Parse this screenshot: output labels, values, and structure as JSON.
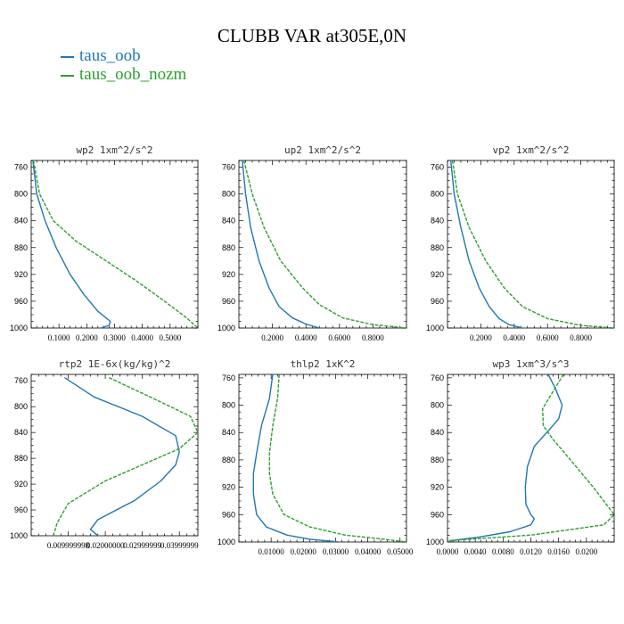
{
  "title": "CLUBB VAR at305E,0N",
  "legend": [
    {
      "name": "taus_oob",
      "color": "#1f77b4"
    },
    {
      "name": "taus_oob_nozm",
      "color": "#2ca02c"
    }
  ],
  "chart_data": [
    {
      "type": "line",
      "title": "wp2  1xm^2/s^2",
      "xlim": [
        0,
        0.6
      ],
      "ylim": [
        1000,
        750
      ],
      "xticks": [
        0.1,
        0.2,
        0.3,
        0.4,
        0.5
      ],
      "xtick_labels": [
        "0.1000",
        "0.2000",
        "0.3000",
        "0.4000",
        "0.5000"
      ],
      "yticks": [
        760,
        800,
        840,
        880,
        920,
        960,
        1000
      ],
      "series": [
        {
          "name": "taus_oob",
          "x": [
            0.006,
            0.02,
            0.05,
            0.09,
            0.14,
            0.19,
            0.24,
            0.285,
            0.28,
            0.25
          ],
          "y": [
            750,
            800,
            840,
            880,
            920,
            950,
            975,
            990,
            996,
            1000
          ]
        },
        {
          "name": "taus_oob_nozm",
          "x": [
            0.008,
            0.03,
            0.08,
            0.16,
            0.27,
            0.38,
            0.48,
            0.56,
            0.6
          ],
          "y": [
            750,
            800,
            840,
            870,
            900,
            930,
            960,
            985,
            1000
          ]
        }
      ]
    },
    {
      "type": "line",
      "title": "up2  1xm^2/s^2",
      "xlim": [
        0,
        1.0
      ],
      "ylim": [
        1000,
        750
      ],
      "xticks": [
        0.2,
        0.4,
        0.6,
        0.8
      ],
      "xtick_labels": [
        "0.2000",
        "0.4000",
        "0.6000",
        "0.8000"
      ],
      "yticks": [
        760,
        800,
        840,
        880,
        920,
        960,
        1000
      ],
      "series": [
        {
          "name": "taus_oob",
          "x": [
            0.02,
            0.04,
            0.07,
            0.12,
            0.18,
            0.24,
            0.32,
            0.4,
            0.48
          ],
          "y": [
            750,
            800,
            850,
            900,
            940,
            968,
            985,
            994,
            1000
          ]
        },
        {
          "name": "taus_oob_nozm",
          "x": [
            0.03,
            0.08,
            0.15,
            0.25,
            0.38,
            0.48,
            0.62,
            0.8,
            1.0
          ],
          "y": [
            750,
            800,
            850,
            900,
            940,
            965,
            985,
            995,
            1000
          ]
        }
      ]
    },
    {
      "type": "line",
      "title": "vp2  1xm^2/s^2",
      "xlim": [
        0,
        1.0
      ],
      "ylim": [
        1000,
        750
      ],
      "xticks": [
        0.2,
        0.4,
        0.6,
        0.8
      ],
      "xtick_labels": [
        "0.2000",
        "0.4000",
        "0.6000",
        "0.8000"
      ],
      "yticks": [
        760,
        800,
        840,
        880,
        920,
        960,
        1000
      ],
      "series": [
        {
          "name": "taus_oob",
          "x": [
            0.02,
            0.04,
            0.08,
            0.13,
            0.19,
            0.25,
            0.31,
            0.37,
            0.45
          ],
          "y": [
            750,
            800,
            850,
            900,
            940,
            968,
            986,
            995,
            1000
          ]
        },
        {
          "name": "taus_oob_nozm",
          "x": [
            0.03,
            0.06,
            0.13,
            0.23,
            0.34,
            0.45,
            0.6,
            0.8,
            1.0
          ],
          "y": [
            750,
            800,
            850,
            900,
            940,
            968,
            986,
            996,
            1000
          ]
        }
      ]
    },
    {
      "type": "line",
      "title": "rtp2  1E-6x(kg/kg)^2",
      "xlim": [
        0,
        0.045
      ],
      "ylim": [
        1000,
        750
      ],
      "xticks": [
        0.01,
        0.02,
        0.03,
        0.04
      ],
      "xtick_labels": [
        "0.009999998",
        "0.02000000",
        "0.02999999",
        "0.03999999"
      ],
      "yticks": [
        760,
        800,
        840,
        880,
        920,
        960,
        1000
      ],
      "series": [
        {
          "name": "taus_oob",
          "x": [
            0.009,
            0.017,
            0.03,
            0.039,
            0.04,
            0.039,
            0.035,
            0.028,
            0.018,
            0.016,
            0.018
          ],
          "y": [
            755,
            785,
            815,
            845,
            870,
            890,
            915,
            945,
            975,
            990,
            1000
          ]
        },
        {
          "name": "taus_oob_nozm",
          "x": [
            0.021,
            0.034,
            0.043,
            0.045,
            0.04,
            0.03,
            0.02,
            0.01,
            0.007,
            0.006
          ],
          "y": [
            755,
            790,
            815,
            840,
            865,
            890,
            915,
            950,
            980,
            1000
          ]
        }
      ]
    },
    {
      "type": "line",
      "title": "thlp2  1xK^2",
      "xlim": [
        0,
        0.052
      ],
      "ylim": [
        1000,
        755
      ],
      "xticks": [
        0.01,
        0.02,
        0.03,
        0.04,
        0.05
      ],
      "xtick_labels": [
        "0.01000",
        "0.02000",
        "0.03000",
        "0.04000",
        "0.05000"
      ],
      "yticks": [
        760,
        800,
        840,
        880,
        920,
        960,
        1000
      ],
      "series": [
        {
          "name": "taus_oob",
          "x": [
            0.0105,
            0.0095,
            0.007,
            0.0055,
            0.0045,
            0.0045,
            0.0055,
            0.0085,
            0.015,
            0.022,
            0.031
          ],
          "y": [
            755,
            790,
            830,
            870,
            900,
            930,
            960,
            978,
            990,
            996,
            1000
          ]
        },
        {
          "name": "taus_oob_nozm",
          "x": [
            0.0125,
            0.012,
            0.0105,
            0.0095,
            0.0095,
            0.0105,
            0.014,
            0.022,
            0.033,
            0.045,
            0.052
          ],
          "y": [
            755,
            790,
            830,
            870,
            900,
            930,
            960,
            978,
            990,
            996,
            1000
          ]
        }
      ]
    },
    {
      "type": "line",
      "title": "wp3  1xm^3/s^3",
      "xlim": [
        0,
        0.024
      ],
      "ylim": [
        1000,
        755
      ],
      "xticks": [
        0,
        0.004,
        0.008,
        0.012,
        0.016,
        0.02
      ],
      "xtick_labels": [
        "0.0000",
        "0.0040",
        "0.0080",
        "0.0120",
        "0.0160",
        "0.0200"
      ],
      "yticks": [
        760,
        800,
        840,
        880,
        920,
        960,
        1000
      ],
      "series": [
        {
          "name": "taus_oob",
          "x": [
            0.0145,
            0.0155,
            0.0165,
            0.016,
            0.0143,
            0.0125,
            0.0115,
            0.0112,
            0.0113,
            0.012,
            0.0125,
            0.012,
            0.009,
            0.0045,
            0.0005
          ],
          "y": [
            755,
            775,
            800,
            820,
            840,
            860,
            890,
            920,
            945,
            960,
            966,
            975,
            985,
            993,
            998
          ]
        },
        {
          "name": "taus_oob_nozm",
          "x": [
            0.0167,
            0.0152,
            0.0137,
            0.0138,
            0.0152,
            0.0177,
            0.021,
            0.024,
            0.0225,
            0.012,
            0.0002
          ],
          "y": [
            755,
            780,
            805,
            830,
            850,
            880,
            920,
            960,
            975,
            990,
            998
          ]
        }
      ]
    }
  ]
}
